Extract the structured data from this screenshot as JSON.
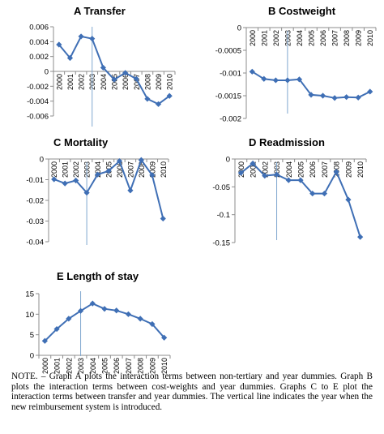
{
  "chart_data": [
    {
      "type": "line",
      "title": "A  Transfer",
      "x": [
        "2000",
        "2001",
        "2002",
        "2003",
        "2004",
        "2005",
        "2006",
        "2007",
        "2008",
        "2009",
        "2010"
      ],
      "values": [
        0.0036,
        0.0018,
        0.0047,
        0.0044,
        0.0005,
        -0.0011,
        -0.0002,
        -0.001,
        -0.0037,
        -0.0044,
        -0.0033
      ],
      "ylim": [
        -0.006,
        0.006
      ],
      "yticks": [
        0.006,
        0.004,
        0.002,
        0,
        -0.002,
        -0.004,
        -0.006
      ],
      "ytick_labels": [
        "0.006",
        "0.004",
        "0.002",
        "0",
        "-0.002",
        "-0.004",
        "-0.006"
      ],
      "reform_year": "2003"
    },
    {
      "type": "line",
      "title": "B  Costweight",
      "x": [
        "2000",
        "2001",
        "2002",
        "2003",
        "2004",
        "2005",
        "2006",
        "2007",
        "2008",
        "2009",
        "2010"
      ],
      "values": [
        -0.00097,
        -0.00113,
        -0.00116,
        -0.00116,
        -0.00114,
        -0.00148,
        -0.0015,
        -0.00155,
        -0.00153,
        -0.00154,
        -0.00141
      ],
      "ylim": [
        -0.002,
        0
      ],
      "yticks": [
        0,
        -0.0005,
        -0.001,
        -0.0015,
        -0.002
      ],
      "ytick_labels": [
        "0",
        "-0.0005",
        "-0.001",
        "-0.0015",
        "-0.002"
      ],
      "reform_year": "2003"
    },
    {
      "type": "line",
      "title": "C  Mortality",
      "x": [
        "2000",
        "2001",
        "2002",
        "2003",
        "2004",
        "2005",
        "2006",
        "2007",
        "2008",
        "2009",
        "2010"
      ],
      "values": [
        -0.0098,
        -0.0118,
        -0.0104,
        -0.0163,
        -0.0075,
        -0.0058,
        -0.001,
        -0.0152,
        -0.0005,
        -0.0078,
        -0.0288
      ],
      "ylim": [
        -0.04,
        0
      ],
      "yticks": [
        0,
        -0.01,
        -0.02,
        -0.03,
        -0.04
      ],
      "ytick_labels": [
        "0",
        "-0.01",
        "-0.02",
        "-0.03",
        "-0.04"
      ],
      "reform_year": "2003"
    },
    {
      "type": "line",
      "title": "D  Readmission",
      "x": [
        "2000",
        "2001",
        "2002",
        "2003",
        "2004",
        "2005",
        "2006",
        "2007",
        "2008",
        "2009",
        "2010"
      ],
      "values": [
        -0.025,
        -0.008,
        -0.03,
        -0.028,
        -0.038,
        -0.038,
        -0.062,
        -0.062,
        -0.023,
        -0.073,
        -0.14
      ],
      "ylim": [
        -0.15,
        0
      ],
      "yticks": [
        0,
        -0.05,
        -0.1,
        -0.15
      ],
      "ytick_labels": [
        "0",
        "-0.05",
        "-0.1",
        "-0.15"
      ],
      "reform_year": "2003"
    },
    {
      "type": "line",
      "title": "E  Length of stay",
      "x": [
        "2000",
        "2001",
        "2002",
        "2003",
        "2004",
        "2005",
        "2006",
        "2007",
        "2008",
        "2009",
        "2010"
      ],
      "values": [
        3.5,
        6.4,
        8.9,
        10.8,
        12.6,
        11.3,
        10.9,
        10.0,
        8.9,
        7.6,
        4.3
      ],
      "ylim": [
        0,
        15
      ],
      "yticks": [
        15,
        10,
        5,
        0
      ],
      "ytick_labels": [
        "15",
        "10",
        "5",
        "0"
      ],
      "reform_year": "2003"
    }
  ],
  "note": "NOTE. – Graph A plots the interaction terms between non-tertiary and year dummies. Graph B plots the interaction terms between cost-weights and year dummies. Graphs C to E plot the interaction terms between transfer and year dummies. The vertical line indicates the year when the new reimbursement system is introduced."
}
